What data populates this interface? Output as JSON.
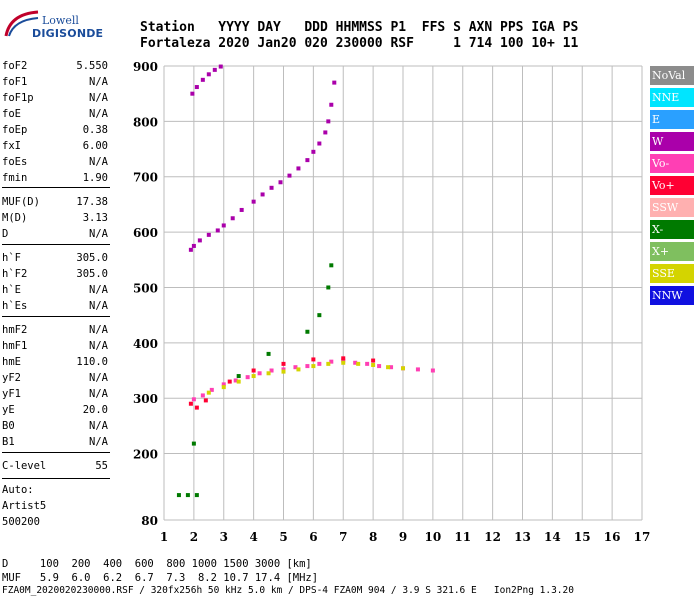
{
  "logo": {
    "line1": "Lowell",
    "line2": "DIGISONDE"
  },
  "header": {
    "labels": "Station   YYYY DAY   DDD HHMMSS P1  FFS S AXN PPS IGA PS",
    "values": "Fortaleza 2020 Jan20 020 230000 RSF     1 714 100 10+ 11"
  },
  "params": [
    {
      "label": "foF2",
      "value": "5.550"
    },
    {
      "label": "foF1",
      "value": "N/A"
    },
    {
      "label": "foF1p",
      "value": "N/A"
    },
    {
      "label": "foE",
      "value": "N/A"
    },
    {
      "label": "foEp",
      "value": "0.38"
    },
    {
      "label": "fxI",
      "value": "6.00"
    },
    {
      "label": "foEs",
      "value": "N/A"
    },
    {
      "label": "fmin",
      "value": "1.90"
    },
    {
      "label": "MUF(D)",
      "value": "17.38"
    },
    {
      "label": "M(D)",
      "value": "3.13"
    },
    {
      "label": "D",
      "value": "N/A"
    },
    {
      "label": "h`F",
      "value": "305.0"
    },
    {
      "label": "h`F2",
      "value": "305.0"
    },
    {
      "label": "h`E",
      "value": "N/A"
    },
    {
      "label": "h`Es",
      "value": "N/A"
    },
    {
      "label": "hmF2",
      "value": "N/A"
    },
    {
      "label": "hmF1",
      "value": "N/A"
    },
    {
      "label": "hmE",
      "value": "110.0"
    },
    {
      "label": "yF2",
      "value": "N/A"
    },
    {
      "label": "yF1",
      "value": "N/A"
    },
    {
      "label": "yE",
      "value": "20.0"
    },
    {
      "label": "B0",
      "value": "N/A"
    },
    {
      "label": "B1",
      "value": "N/A"
    },
    {
      "label": "C-level",
      "value": "55"
    }
  ],
  "auto": {
    "line1": "Auto:",
    "line2": "Artist5",
    "line3": "500200"
  },
  "legend": [
    {
      "label": "NoVal",
      "color": "#8c8c8c"
    },
    {
      "label": "NNE",
      "color": "#00e5ff"
    },
    {
      "label": "E",
      "color": "#2aa0ff"
    },
    {
      "label": "W",
      "color": "#aa00aa"
    },
    {
      "label": "Vo-",
      "color": "#ff3fb4"
    },
    {
      "label": "Vo+",
      "color": "#ff0033"
    },
    {
      "label": "SSW",
      "color": "#ffb0b0"
    },
    {
      "label": "X-",
      "color": "#007a00"
    },
    {
      "label": "X+",
      "color": "#7fbf5f"
    },
    {
      "label": "SSE",
      "color": "#d4d400"
    },
    {
      "label": "NNW",
      "color": "#1010e0"
    }
  ],
  "bottom": {
    "d_line": "D     100  200  400  600  800 1000 1500 3000 [km]",
    "muf_line": "MUF   5.9  6.0  6.2  6.7  7.3  8.2 10.7 17.4 [MHz]"
  },
  "footer": "FZA0M_2020020230000.RSF / 320fx256h 50 kHz 5.0 km / DPS-4 FZA0M 904 / 3.9 S 321.6 E   Ion2Png 1.3.20",
  "chart_data": {
    "type": "scatter",
    "xlim": [
      1,
      17
    ],
    "ylim": [
      80,
      900
    ],
    "xticks": [
      1,
      2,
      3,
      4,
      5,
      6,
      7,
      8,
      9,
      10,
      11,
      12,
      13,
      14,
      15,
      16,
      17
    ],
    "yticks": [
      80,
      200,
      300,
      400,
      500,
      600,
      700,
      800,
      900
    ],
    "grid": true,
    "series": [
      {
        "name": "W",
        "color": "#aa00aa",
        "points": [
          [
            1.95,
            850
          ],
          [
            2.1,
            862
          ],
          [
            2.3,
            875
          ],
          [
            2.5,
            885
          ],
          [
            2.7,
            893
          ],
          [
            2.9,
            899
          ],
          [
            1.9,
            568
          ],
          [
            2.0,
            575
          ],
          [
            2.2,
            585
          ],
          [
            2.5,
            595
          ],
          [
            2.8,
            603
          ],
          [
            3.0,
            612
          ],
          [
            3.3,
            625
          ],
          [
            3.6,
            640
          ],
          [
            4.0,
            655
          ],
          [
            4.3,
            668
          ],
          [
            4.6,
            680
          ],
          [
            4.9,
            690
          ],
          [
            5.2,
            702
          ],
          [
            5.5,
            715
          ],
          [
            5.8,
            730
          ],
          [
            6.0,
            745
          ],
          [
            6.2,
            760
          ],
          [
            6.4,
            780
          ],
          [
            6.5,
            800
          ],
          [
            6.6,
            830
          ],
          [
            6.7,
            870
          ]
        ]
      },
      {
        "name": "Vo-",
        "color": "#ff3fb4",
        "points": [
          [
            2.0,
            298
          ],
          [
            2.3,
            305
          ],
          [
            2.6,
            315
          ],
          [
            3.0,
            325
          ],
          [
            3.4,
            332
          ],
          [
            3.8,
            338
          ],
          [
            4.2,
            345
          ],
          [
            4.6,
            350
          ],
          [
            5.0,
            352
          ],
          [
            5.4,
            356
          ],
          [
            5.8,
            358
          ],
          [
            6.2,
            362
          ],
          [
            6.6,
            366
          ],
          [
            7.0,
            368
          ],
          [
            7.4,
            364
          ],
          [
            7.8,
            362
          ],
          [
            8.2,
            358
          ],
          [
            8.6,
            356
          ],
          [
            9.0,
            354
          ],
          [
            9.5,
            352
          ],
          [
            10.0,
            350
          ]
        ]
      },
      {
        "name": "X-",
        "color": "#007a00",
        "points": [
          [
            1.5,
            125
          ],
          [
            1.8,
            125
          ],
          [
            2.1,
            125
          ],
          [
            2.0,
            218
          ],
          [
            5.8,
            420
          ],
          [
            6.2,
            450
          ],
          [
            6.5,
            500
          ],
          [
            6.6,
            540
          ],
          [
            4.5,
            380
          ],
          [
            3.5,
            340
          ]
        ]
      },
      {
        "name": "SSE",
        "color": "#d4d400",
        "points": [
          [
            2.5,
            310
          ],
          [
            3.0,
            320
          ],
          [
            3.5,
            330
          ],
          [
            4.0,
            340
          ],
          [
            4.5,
            345
          ],
          [
            5.0,
            348
          ],
          [
            5.5,
            352
          ],
          [
            6.0,
            358
          ],
          [
            6.5,
            362
          ],
          [
            7.0,
            364
          ],
          [
            7.5,
            362
          ],
          [
            8.0,
            360
          ],
          [
            8.5,
            356
          ],
          [
            9.0,
            354
          ]
        ]
      },
      {
        "name": "Vo+",
        "color": "#ff0033",
        "points": [
          [
            1.9,
            290
          ],
          [
            2.1,
            283
          ],
          [
            2.4,
            296
          ],
          [
            3.2,
            330
          ],
          [
            4.0,
            350
          ],
          [
            5.0,
            362
          ],
          [
            6.0,
            370
          ],
          [
            7.0,
            372
          ],
          [
            8.0,
            368
          ]
        ]
      }
    ]
  }
}
